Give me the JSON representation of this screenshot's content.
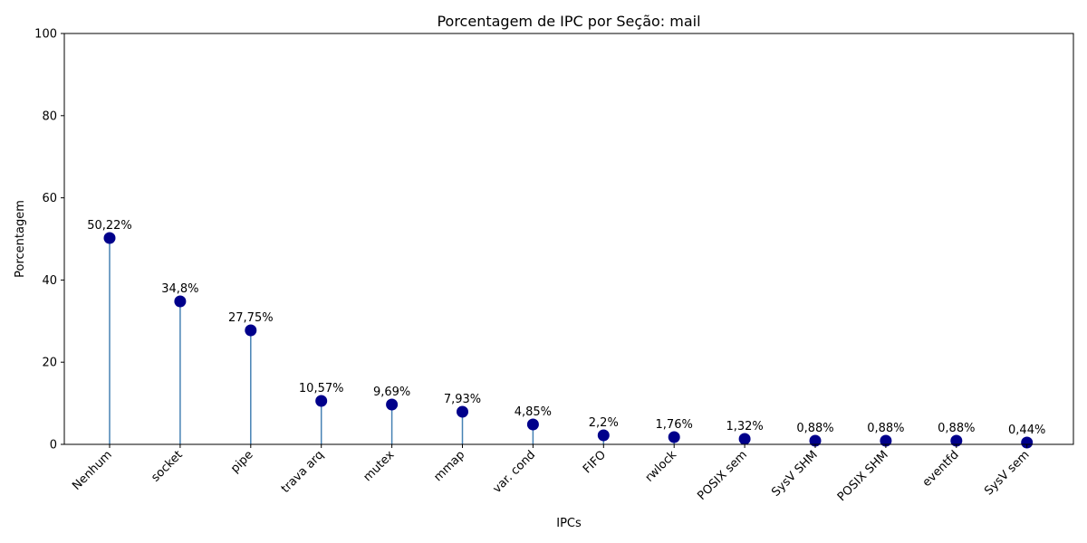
{
  "chart_data": {
    "type": "lollipop",
    "title": "Porcentagem de IPC por Seção: mail",
    "xlabel": "IPCs",
    "ylabel": "Porcentagem",
    "ylim": [
      0,
      100
    ],
    "yticks": [
      0,
      20,
      40,
      60,
      80,
      100
    ],
    "grid": false,
    "categories": [
      "Nenhum",
      "socket",
      "pipe",
      "trava arq",
      "mutex",
      "mmap",
      "var. cond",
      "FIFO",
      "rwlock",
      "POSIX sem",
      "SysV SHM",
      "POSIX SHM",
      "eventfd",
      "SysV sem"
    ],
    "values": [
      50.22,
      34.8,
      27.75,
      10.57,
      9.69,
      7.93,
      4.85,
      2.2,
      1.76,
      1.32,
      0.88,
      0.88,
      0.88,
      0.44
    ],
    "value_labels": [
      "50,22%",
      "34,8%",
      "27,75%",
      "10,57%",
      "9,69%",
      "7,93%",
      "4,85%",
      "2,2%",
      "1,76%",
      "1,32%",
      "0,88%",
      "0,88%",
      "0,88%",
      "0,44%"
    ],
    "colors": {
      "stem": "#4682b4",
      "marker": "#00008b"
    }
  }
}
